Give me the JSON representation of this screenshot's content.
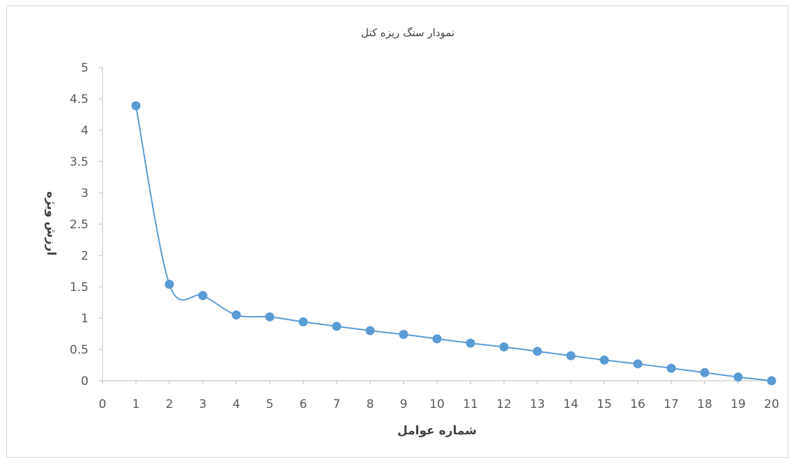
{
  "chart_data": {
    "type": "line",
    "title": "نمودار سنگ ریزه کتل",
    "xlabel": "شماره عوامل",
    "ylabel": "ارزش ویژه",
    "xlim": [
      0,
      20
    ],
    "ylim": [
      0,
      5
    ],
    "x_ticks": [
      "0",
      "1",
      "2",
      "3",
      "4",
      "5",
      "6",
      "7",
      "8",
      "9",
      "10",
      "11",
      "12",
      "13",
      "14",
      "15",
      "16",
      "17",
      "18",
      "19",
      "20"
    ],
    "y_ticks": [
      "0",
      "0.5",
      "1",
      "1.5",
      "2",
      "2.5",
      "3",
      "3.5",
      "4",
      "4.5",
      "5"
    ],
    "grid": false,
    "smooth": true,
    "line_color": "#5b9bd5",
    "marker_color": "#5b9bd5",
    "series": [
      {
        "x": [
          1,
          2,
          3,
          4,
          5,
          6,
          7,
          8,
          9,
          10,
          11,
          12,
          13,
          14,
          15,
          16,
          17,
          18,
          19,
          20
        ],
        "values": [
          4.39,
          1.54,
          1.36,
          1.05,
          1.02,
          0.94,
          0.87,
          0.8,
          0.74,
          0.67,
          0.6,
          0.54,
          0.47,
          0.4,
          0.33,
          0.27,
          0.2,
          0.13,
          0.06,
          0.0
        ]
      }
    ]
  }
}
